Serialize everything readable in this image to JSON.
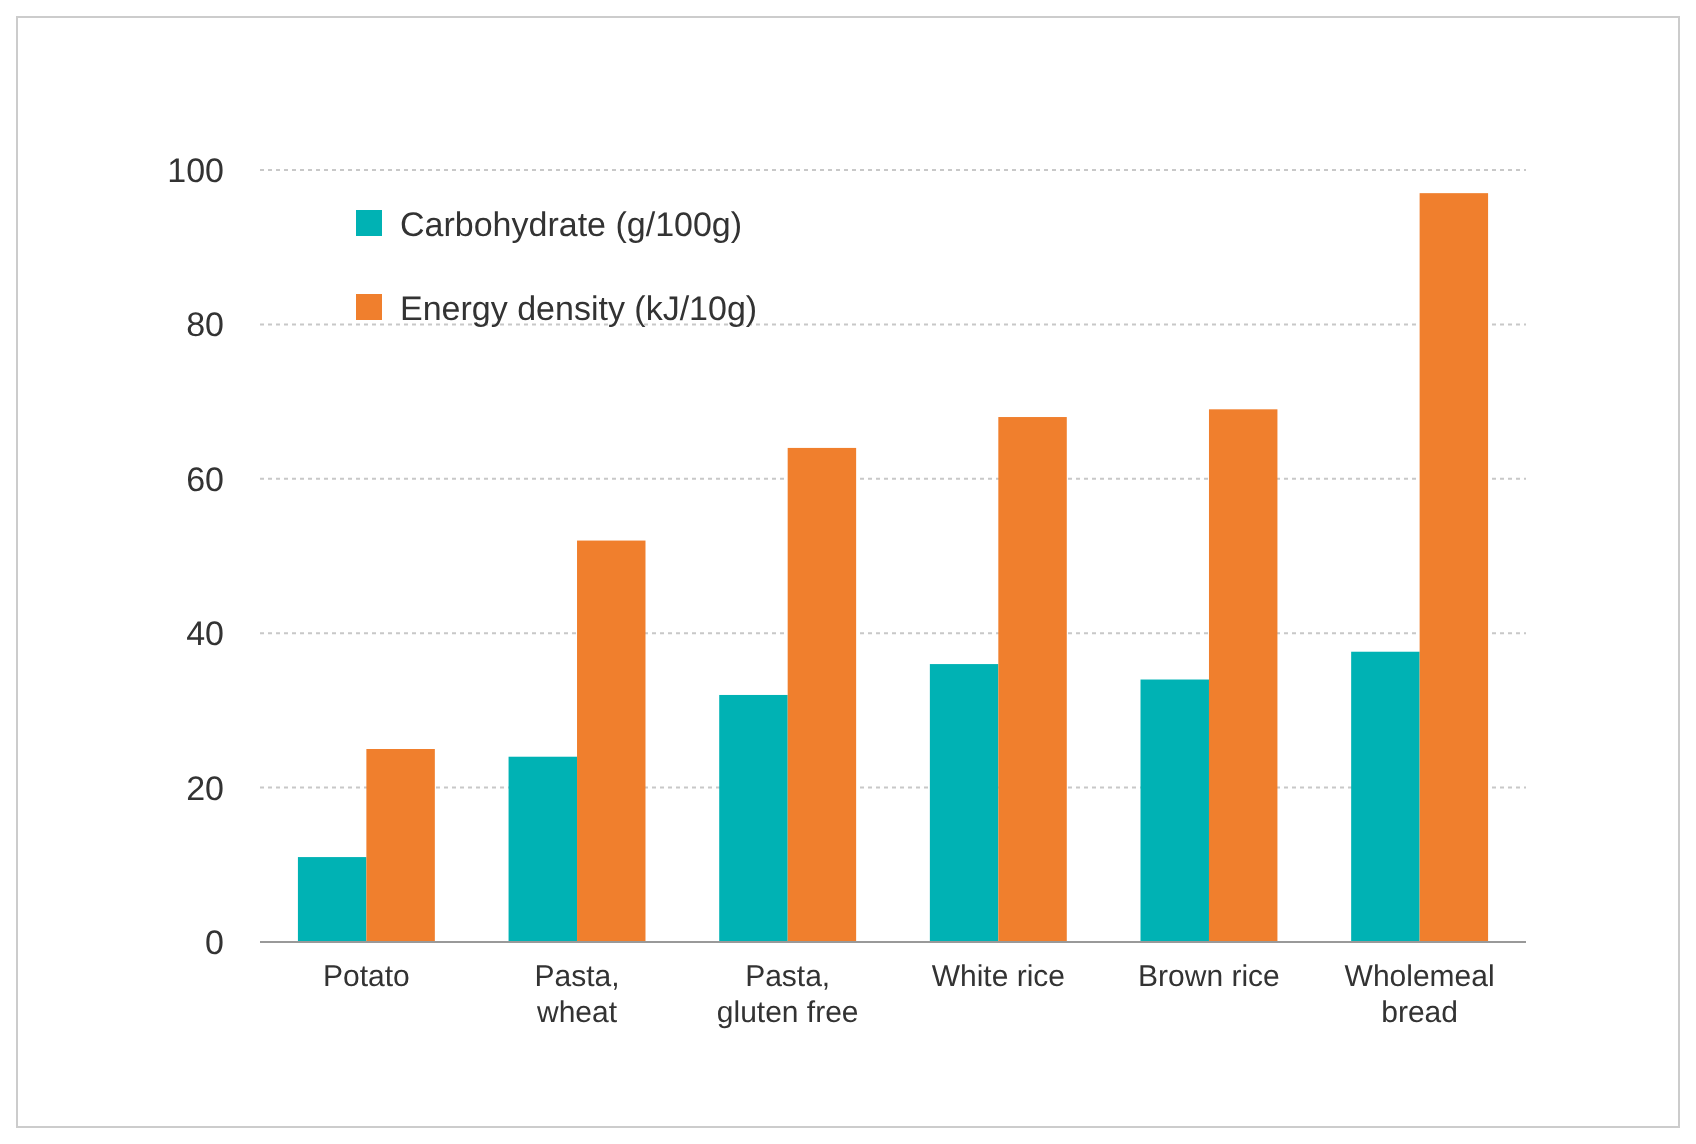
{
  "chart_data": {
    "type": "bar",
    "categories": [
      "Potato",
      "Pasta, wheat",
      "Pasta, gluten free",
      "White rice",
      "Brown rice",
      "Wholemeal bread"
    ],
    "series": [
      {
        "name": "Carbohydrate (g/100g)",
        "color": "#00b2b4",
        "values": [
          11,
          24,
          32,
          36,
          34,
          37.6
        ]
      },
      {
        "name": "Energy density (kJ/10g)",
        "color": "#f07f2d",
        "values": [
          25,
          52,
          64,
          68,
          69,
          97
        ]
      }
    ],
    "ylim": [
      0,
      100
    ],
    "yticks": [
      0,
      20,
      40,
      60,
      80,
      100
    ],
    "grid": "y",
    "legend": "top left"
  }
}
